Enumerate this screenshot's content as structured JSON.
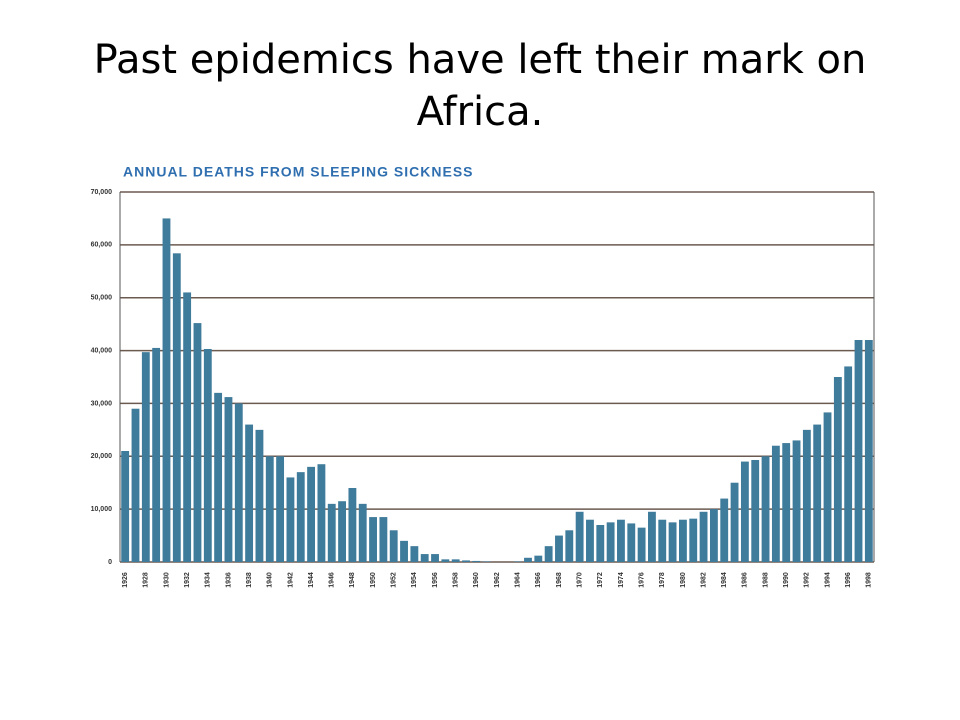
{
  "slide_title": "Past epidemics have left their mark on Africa.",
  "chart_data": {
    "type": "bar",
    "title": "ANNUAL DEATHS FROM SLEEPING SICKNESS",
    "categories": [
      "1926",
      null,
      "1928",
      null,
      "1930",
      null,
      "1932",
      null,
      "1934",
      null,
      "1936",
      null,
      "1938",
      null,
      "1940",
      null,
      "1942",
      null,
      "1944",
      null,
      "1946",
      null,
      "1948",
      null,
      "1950",
      null,
      "1952",
      null,
      "1954",
      null,
      "1956",
      null,
      "1958",
      null,
      "1960",
      null,
      "1962",
      null,
      "1964",
      null,
      "1966",
      null,
      "1968",
      null,
      "1970",
      null,
      "1972",
      null,
      "1974",
      null,
      "1976",
      null,
      "1978",
      null,
      "1980",
      null,
      "1982",
      null,
      "1984",
      null,
      "1986",
      null,
      "1988",
      null,
      "1990",
      null,
      "1992",
      null,
      "1994",
      null,
      "1996",
      null,
      "1998"
    ],
    "values": [
      21000,
      29000,
      39700,
      40500,
      65000,
      58400,
      51000,
      45200,
      40300,
      32000,
      31200,
      30000,
      26000,
      25000,
      20000,
      20000,
      16000,
      17000,
      18000,
      18500,
      11000,
      11500,
      14000,
      11000,
      8500,
      8500,
      6000,
      4000,
      3000,
      1500,
      1500,
      500,
      500,
      300,
      200,
      100,
      0,
      0,
      100,
      800,
      1200,
      3000,
      5000,
      6000,
      9500,
      8000,
      7000,
      7500,
      8000,
      7300,
      6500,
      9500,
      8000,
      7500,
      8000,
      8200,
      9500,
      10000,
      12000,
      15000,
      19000,
      19300,
      20000,
      22000,
      22500,
      23000,
      25000,
      26000,
      28300,
      35000,
      37000,
      42000,
      42000
    ],
    "color": "#3f7b9b",
    "ylim": [
      0,
      70000
    ],
    "yticks": [
      0,
      {
        "value": 10000,
        "label": "10,000"
      },
      {
        "value": 20000,
        "label": "20,000"
      },
      {
        "value": 30000,
        "label": "30,000"
      },
      {
        "value": 40000,
        "label": "40,000"
      },
      {
        "value": 50000,
        "label": "50,000"
      },
      {
        "value": 60000,
        "label": "60,000"
      },
      {
        "value": 70000,
        "label": "70,000"
      }
    ],
    "grid": true
  }
}
